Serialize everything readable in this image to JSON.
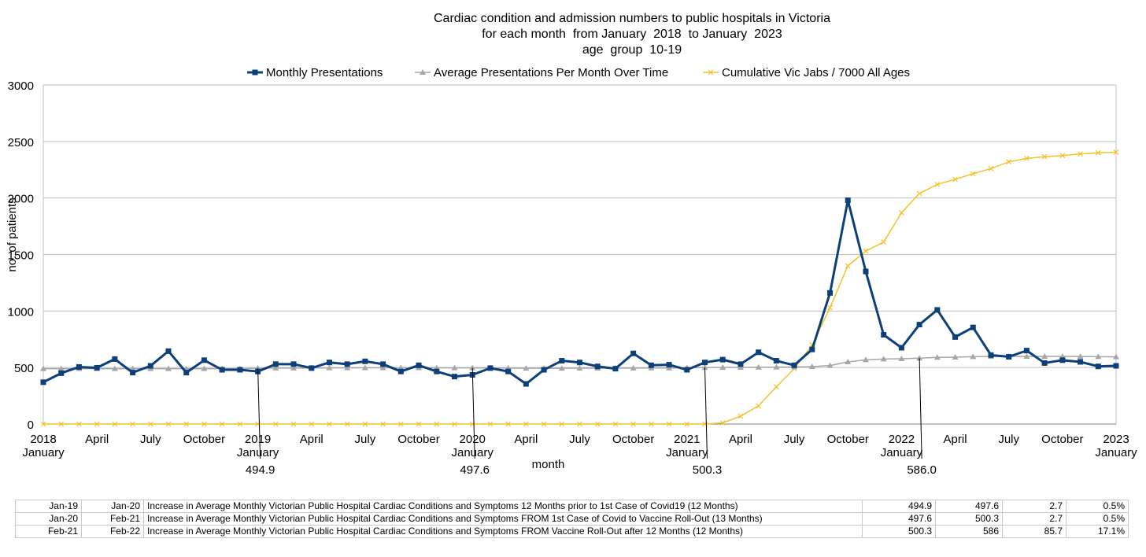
{
  "colors": {
    "presentations": "#0d3f78",
    "average": "#a6a6a6",
    "jabs": "#f2c22a",
    "grid": "#c0c0c0"
  },
  "chart_data": {
    "type": "line",
    "title_lines": [
      "Cardiac condition and admission numbers to public hospitals in Victoria",
      "for each month  from January  2018  to January  2023",
      "age  group  10-19"
    ],
    "xlabel": "month",
    "ylabel": "no. of patients",
    "ylim": [
      0,
      3000
    ],
    "yticks": [
      "0",
      "500",
      "1000",
      "1500",
      "2000",
      "2500",
      "3000"
    ],
    "grid": true,
    "legend_position": "top-center",
    "x_ticks": [
      {
        "i": 0,
        "l1": "2018",
        "l2": "January"
      },
      {
        "i": 3,
        "l1": "April",
        "l2": ""
      },
      {
        "i": 6,
        "l1": "July",
        "l2": ""
      },
      {
        "i": 9,
        "l1": "October",
        "l2": ""
      },
      {
        "i": 12,
        "l1": "2019",
        "l2": "January"
      },
      {
        "i": 15,
        "l1": "April",
        "l2": ""
      },
      {
        "i": 18,
        "l1": "July",
        "l2": ""
      },
      {
        "i": 21,
        "l1": "October",
        "l2": ""
      },
      {
        "i": 24,
        "l1": "2020",
        "l2": "January"
      },
      {
        "i": 27,
        "l1": "April",
        "l2": ""
      },
      {
        "i": 30,
        "l1": "July",
        "l2": ""
      },
      {
        "i": 33,
        "l1": "October",
        "l2": ""
      },
      {
        "i": 36,
        "l1": "2021",
        "l2": "January"
      },
      {
        "i": 39,
        "l1": "April",
        "l2": ""
      },
      {
        "i": 42,
        "l1": "July",
        "l2": ""
      },
      {
        "i": 45,
        "l1": "October",
        "l2": ""
      },
      {
        "i": 48,
        "l1": "2022",
        "l2": "January"
      },
      {
        "i": 51,
        "l1": "April",
        "l2": ""
      },
      {
        "i": 54,
        "l1": "July",
        "l2": ""
      },
      {
        "i": 57,
        "l1": "October",
        "l2": ""
      },
      {
        "i": 60,
        "l1": "2023",
        "l2": "January"
      }
    ],
    "series": [
      {
        "name": "Monthly Presentations",
        "values": [
          370,
          450,
          505,
          498,
          575,
          455,
          515,
          645,
          455,
          565,
          480,
          480,
          465,
          530,
          530,
          495,
          545,
          530,
          555,
          530,
          465,
          520,
          465,
          420,
          435,
          495,
          465,
          355,
          480,
          560,
          545,
          510,
          490,
          625,
          520,
          525,
          480,
          545,
          570,
          530,
          635,
          560,
          520,
          660,
          1160,
          1980,
          1350,
          790,
          675,
          880,
          1010,
          770,
          855,
          610,
          595,
          650,
          540,
          565,
          550,
          510,
          515
        ]
      },
      {
        "name": "Average Presentations Per Month Over Time",
        "values": [
          490,
          490,
          490,
          490,
          490,
          490,
          490,
          490,
          490,
          490,
          490,
          490,
          495,
          495,
          495,
          496,
          497,
          497,
          498,
          498,
          498,
          498,
          498,
          497,
          497,
          496,
          495,
          493,
          493,
          493,
          494,
          494,
          494,
          495,
          496,
          496,
          498,
          500,
          501,
          501,
          503,
          504,
          505,
          508,
          518,
          550,
          568,
          575,
          578,
          583,
          590,
          592,
          596,
          598,
          598,
          599,
          599,
          599,
          598,
          596,
          594
        ]
      },
      {
        "name": "Cumulative Vic Jabs / 7000  All Ages",
        "values": [
          0,
          0,
          0,
          0,
          0,
          0,
          0,
          0,
          0,
          0,
          0,
          0,
          0,
          0,
          0,
          0,
          0,
          0,
          0,
          0,
          0,
          0,
          0,
          0,
          0,
          0,
          0,
          0,
          0,
          0,
          0,
          0,
          0,
          0,
          0,
          0,
          0,
          0,
          10,
          70,
          160,
          330,
          490,
          700,
          1030,
          1400,
          1530,
          1610,
          1870,
          2040,
          2120,
          2165,
          2215,
          2260,
          2320,
          2350,
          2365,
          2375,
          2390,
          2400,
          2405
        ]
      }
    ],
    "annotations": [
      {
        "i": 12,
        "label": "494.9"
      },
      {
        "i": 24,
        "label": "497.6"
      },
      {
        "i": 37,
        "label": "500.3"
      },
      {
        "i": 49,
        "label": "586.0"
      }
    ]
  },
  "table": {
    "rows": [
      [
        "Jan-19",
        "Jan-20",
        "Increase in Average Monthly Victorian Public Hospital Cardiac Conditions and Symptoms  12 Months prior to 1st Case of Covid19  (12 Months)",
        "494.9",
        "497.6",
        "2.7",
        "0.5%"
      ],
      [
        "Jan-20",
        "Feb-21",
        "Increase in Average Monthly Victorian Public Hospital Cardiac Conditions and Symptoms  FROM 1st Case of Covid to Vaccine Roll-Out (13 Months)",
        "497.6",
        "500.3",
        "2.7",
        "0.5%"
      ],
      [
        "Feb-21",
        "Feb-22",
        "Increase in Average Monthly Victorian Public Hospital Cardiac Conditions and Symptoms FROM Vaccine Roll-Out after 12 Months (12 Months)",
        "500.3",
        "586",
        "85.7",
        "17.1%"
      ]
    ]
  }
}
